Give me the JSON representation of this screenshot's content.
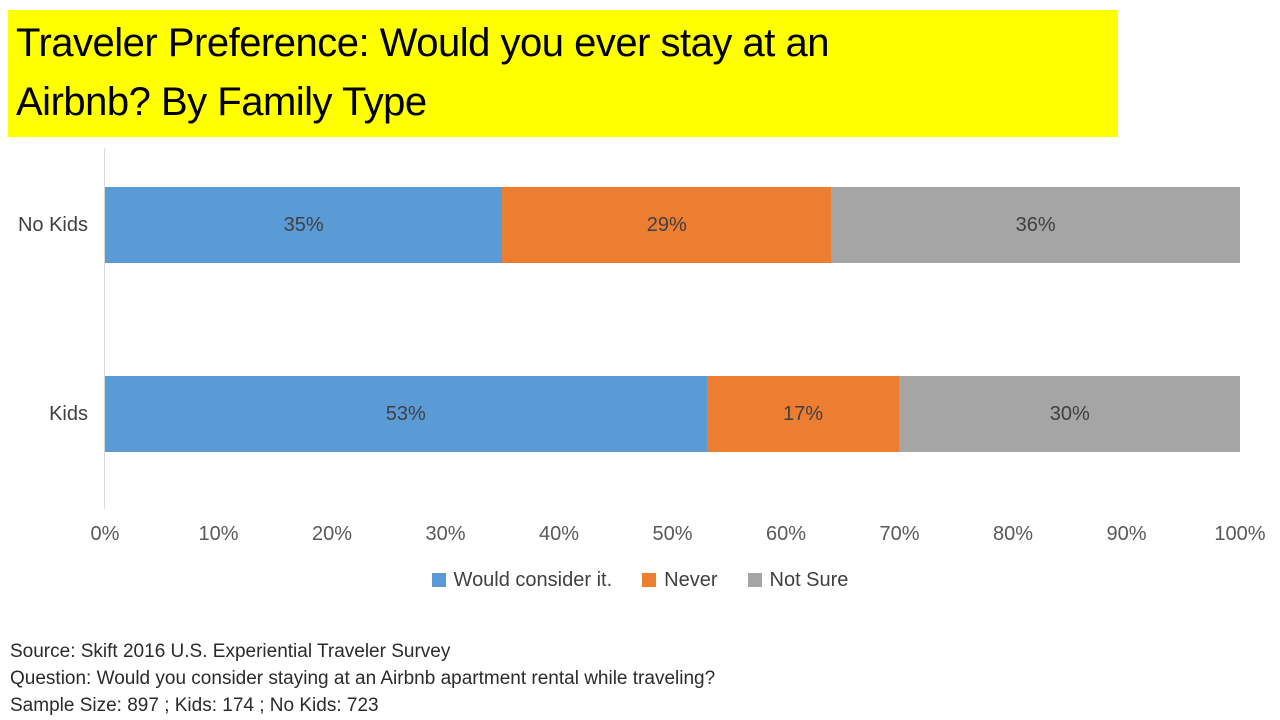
{
  "title": "Traveler Preference: Would you ever stay at an\nAirbnb? By Family Type",
  "colors": {
    "title_highlight": "#FFFF00",
    "title_text": "#000000",
    "axis_line": "#D9D9D9",
    "data_label_text": "#404040",
    "tick_text": "#595959",
    "footer_text": "#2b2b2b"
  },
  "chart_data": {
    "type": "bar",
    "orientation": "horizontal",
    "stacked": true,
    "grid": false,
    "categories": [
      "No Kids",
      "Kids"
    ],
    "series": [
      {
        "name": "Would consider it.",
        "color": "#5B9BD5",
        "values": [
          35,
          53
        ]
      },
      {
        "name": "Never",
        "color": "#ED7D31",
        "values": [
          29,
          17
        ]
      },
      {
        "name": "Not Sure",
        "color": "#A5A5A5",
        "values": [
          36,
          30
        ]
      }
    ],
    "data_label_suffix": "%",
    "xlim": [
      0,
      100
    ],
    "x_ticks": [
      "0%",
      "10%",
      "20%",
      "30%",
      "40%",
      "50%",
      "60%",
      "70%",
      "80%",
      "90%",
      "100%"
    ],
    "legend_position": "bottom"
  },
  "footer": {
    "source_line": "Source: Skift 2016 U.S. Experiential Traveler Survey",
    "question_line": "Question: Would you consider staying at an Airbnb apartment rental while traveling?",
    "sample_line": "Sample Size: 897 ; Kids: 174 ; No Kids: 723"
  }
}
